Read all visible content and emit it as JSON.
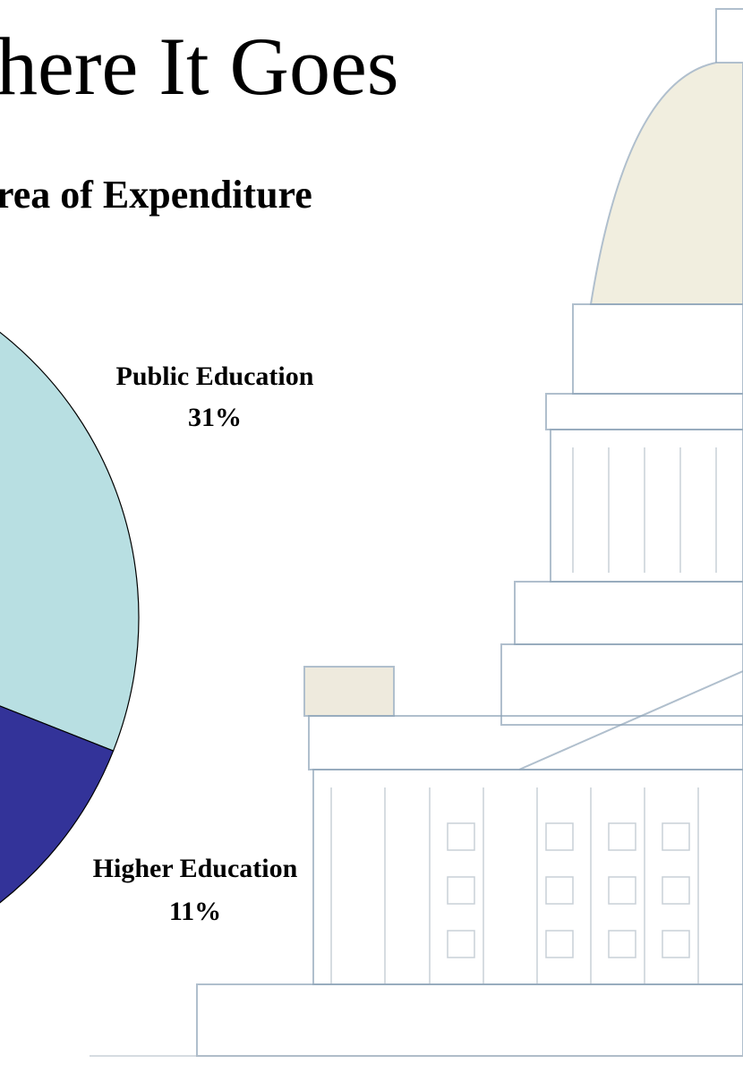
{
  "title": "here It Goes",
  "chart_data": {
    "type": "pie",
    "title": "rea of Expenditure",
    "categories": [
      "Public Education",
      "Higher Education"
    ],
    "values": [
      31,
      11
    ],
    "value_labels": [
      "31%",
      "11%"
    ],
    "colors": [
      "#b8dfe2",
      "#333399"
    ]
  }
}
